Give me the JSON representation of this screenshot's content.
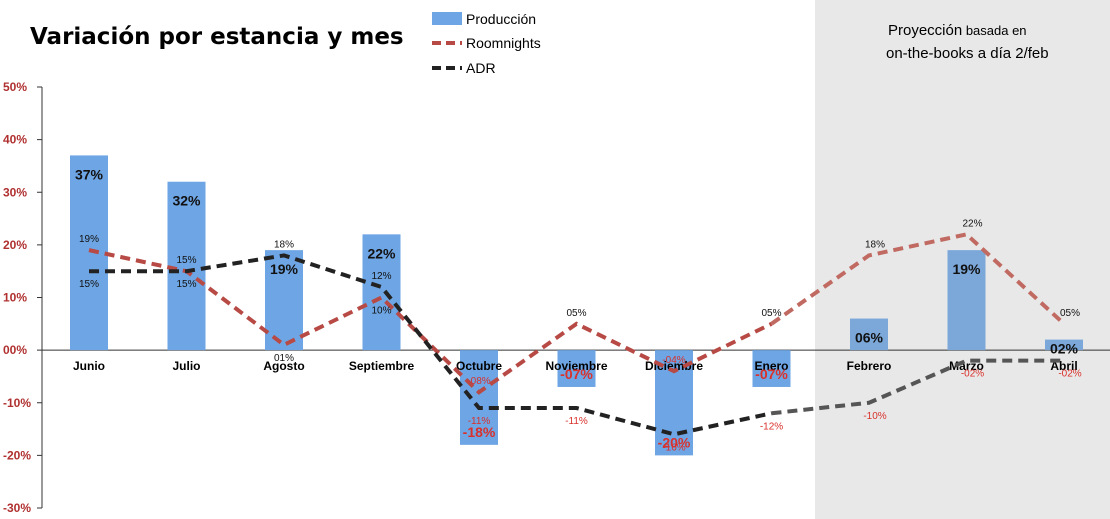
{
  "chart_data": {
    "type": "bar",
    "title": "Variación por estancia y mes",
    "projection_note_line1_main": "Proyección",
    "projection_note_line1_rest": " basada en",
    "projection_note_line2": "on-the-books a día 2/feb",
    "categories": [
      "Junio",
      "Julio",
      "Agosto",
      "Septiembre",
      "Octubre",
      "Noviembre",
      "Diciembre",
      "Enero",
      "Febrero",
      "Marzo",
      "Abril"
    ],
    "projection_start_index": 8,
    "ylim": [
      -30,
      50
    ],
    "yticks": [
      -30,
      -20,
      -10,
      0,
      10,
      20,
      30,
      40,
      50
    ],
    "ytick_labels": [
      "-30%",
      "-20%",
      "-10%",
      "00%",
      "10%",
      "20%",
      "30%",
      "40%",
      "50%"
    ],
    "legend_placement": "top-center",
    "colors": {
      "bars": "#6ea5e4",
      "roomnights": "#b84a45",
      "adr": "#222222",
      "projection_bg": "#e8e8e8",
      "negative_label": "#d9312b"
    },
    "series": [
      {
        "name": "Producción",
        "kind": "bar",
        "values": [
          37,
          32,
          19,
          22,
          -18,
          -7,
          -20,
          -7,
          6,
          19,
          2
        ],
        "labels": [
          "37%",
          "32%",
          "19%",
          "22%",
          "-18%",
          "-07%",
          "-20%",
          "-07%",
          "06%",
          "19%",
          "02%"
        ]
      },
      {
        "name": "Roomnights",
        "kind": "line",
        "values": [
          19,
          15,
          1,
          10,
          -8,
          5,
          -4,
          5,
          18,
          22,
          5
        ],
        "labels": [
          "19%",
          "15%",
          "01%",
          "10%",
          "-08%",
          "05%",
          "-04%",
          "05%",
          "18%",
          "22%",
          "05%"
        ]
      },
      {
        "name": "ADR",
        "kind": "line",
        "values": [
          15,
          15,
          18,
          12,
          -11,
          -11,
          -16,
          -12,
          -10,
          -2,
          -2
        ],
        "labels": [
          "15%",
          "15%",
          "18%",
          "12%",
          "-11%",
          "-11%",
          "-16%",
          "-12%",
          "-10%",
          "-02%",
          "-02%"
        ]
      }
    ]
  }
}
